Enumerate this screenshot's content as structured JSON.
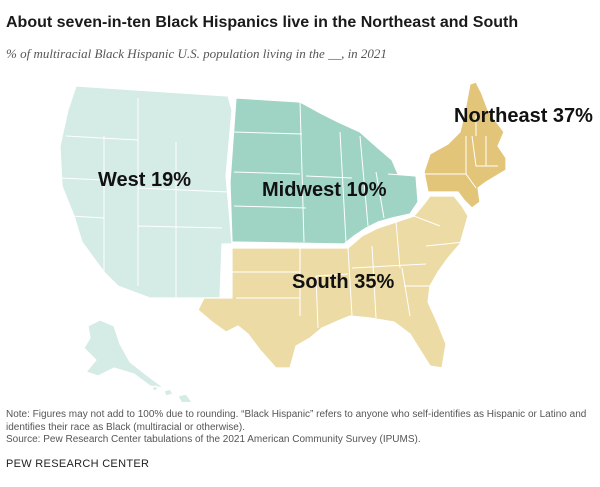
{
  "title": "About seven-in-ten Black Hispanics live in the Northeast and South",
  "subtitle": "% of multiracial Black Hispanic U.S. population living in the __, in 2021",
  "regions": [
    {
      "id": "west",
      "label": "West 19%",
      "value": 19,
      "color": "#d4ebe6"
    },
    {
      "id": "midwest",
      "label": "Midwest 10%",
      "value": 10,
      "color": "#9fd3c4"
    },
    {
      "id": "northeast",
      "label": "Northeast 37%",
      "value": 37,
      "color": "#e3c57a"
    },
    {
      "id": "south",
      "label": "South 35%",
      "value": 35,
      "color": "#ecdba4"
    }
  ],
  "note": "Note: Figures may not add to 100% due to rounding. “Black Hispanic” refers to anyone who self-identifies as Hispanic or Latino and identifies their race as Black (multiracial or otherwise).",
  "source": "Source: Pew Research Center tabulations of the 2021 American Community Survey (IPUMS).",
  "brand": "PEW RESEARCH CENTER"
}
